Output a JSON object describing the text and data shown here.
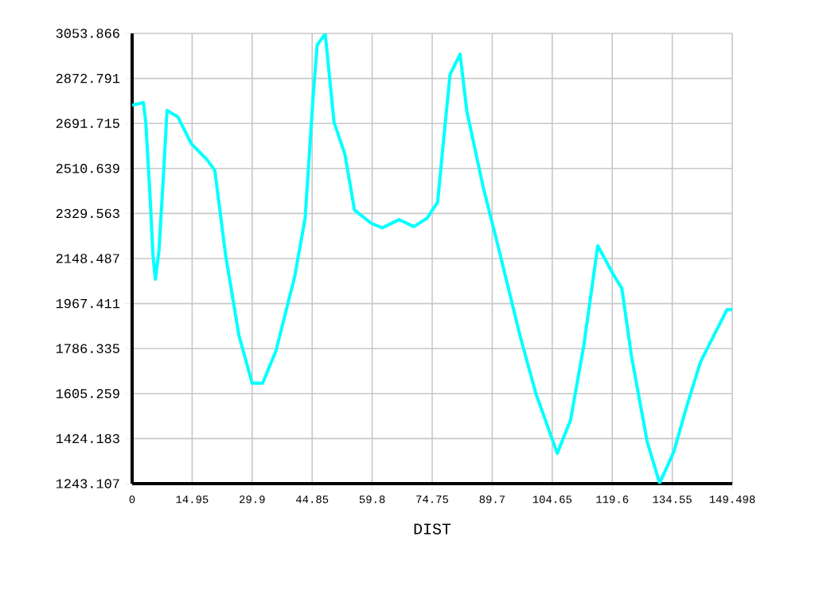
{
  "chart_data": {
    "type": "line",
    "xlabel": "DIST",
    "x": [
      0,
      2.8,
      3.4,
      4.4,
      5.2,
      5.8,
      6.7,
      7.8,
      8.7,
      11.4,
      14.7,
      18.6,
      20.6,
      23.3,
      26.6,
      29.9,
      32.5,
      35.8,
      40.5,
      43.1,
      45.1,
      46.1,
      48.1,
      50.3,
      53.0,
      55.4,
      59.6,
      62.3,
      66.5,
      70.2,
      73.5,
      76.1,
      77.5,
      79.2,
      81.7,
      83.4,
      87.4,
      91.4,
      96.6,
      100.6,
      105.9,
      109.2,
      112.5,
      116.0,
      119.8,
      122.0,
      124.4,
      128.3,
      131.4,
      134.9,
      138.3,
      141.6,
      145.6,
      148.2,
      149.498
    ],
    "series": [
      {
        "color": "#00ffff",
        "values": [
          2765,
          2776,
          2696,
          2418,
          2161,
          2065,
          2183,
          2482,
          2744,
          2718,
          2611,
          2547,
          2503,
          2161,
          1840,
          1647,
          1647,
          1776,
          2076,
          2311,
          2803,
          3007,
          3053,
          2696,
          2568,
          2343,
          2290,
          2272,
          2305,
          2277,
          2311,
          2375,
          2611,
          2889,
          2970,
          2739,
          2439,
          2183,
          1840,
          1604,
          1365,
          1498,
          1797,
          2200,
          2086,
          2028,
          1755,
          1412,
          1245,
          1370,
          1562,
          1733,
          1861,
          1943,
          1943
        ]
      }
    ],
    "xlim": [
      0,
      149.498
    ],
    "ylim": [
      1243.107,
      3053.866
    ],
    "xticks": [
      0,
      14.95,
      29.9,
      44.85,
      59.8,
      74.75,
      89.7,
      104.65,
      119.6,
      134.55,
      149.498
    ],
    "yticks": [
      1243.107,
      1424.183,
      1605.259,
      1786.335,
      1967.411,
      2148.487,
      2329.563,
      2510.639,
      2691.715,
      2872.791,
      3053.866
    ],
    "grid": true,
    "marker": "none",
    "line_style": "solid"
  }
}
